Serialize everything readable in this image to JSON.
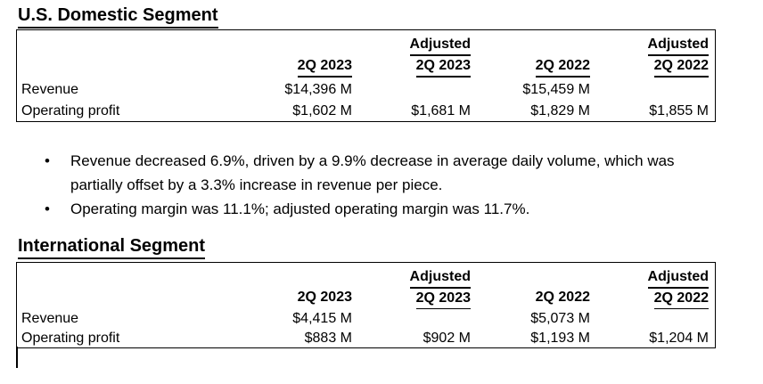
{
  "colors": {
    "background": "#ffffff",
    "text": "#000000",
    "table_border": "#000000"
  },
  "domestic": {
    "title": "U.S. Domestic Segment",
    "table": {
      "col_headers": {
        "adjusted_label": "Adjusted",
        "q2_2023": "2Q 2023",
        "adj_2023": "2Q 2023",
        "q2_2022": "2Q 2022",
        "adj_2022": "2Q 2022"
      },
      "rows": [
        {
          "label": "Revenue",
          "q2_2023": "$14,396 M",
          "adj_2023": "",
          "q2_2022": "$15,459 M",
          "adj_2022": ""
        },
        {
          "label": "Operating profit",
          "q2_2023": "$1,602 M",
          "adj_2023": "$1,681 M",
          "q2_2022": "$1,829 M",
          "adj_2022": "$1,855 M"
        }
      ]
    }
  },
  "highlights": {
    "bullet_char": "•",
    "items": [
      "Revenue decreased 6.9%, driven by a 9.9% decrease in average daily volume, which was partially offset by a 3.3% increase in revenue per piece.",
      "Operating margin was 11.1%; adjusted operating margin was 11.7%."
    ]
  },
  "international": {
    "title": "International Segment",
    "table": {
      "col_headers": {
        "adjusted_label": "Adjusted",
        "q2_2023": "2Q 2023",
        "adj_2023": "2Q 2023",
        "q2_2022": "2Q 2022",
        "adj_2022": "2Q 2022"
      },
      "rows": [
        {
          "label": "Revenue",
          "q2_2023": "$4,415 M",
          "adj_2023": "",
          "q2_2022": "$5,073 M",
          "adj_2022": ""
        },
        {
          "label": "Operating profit",
          "q2_2023": "$883 M",
          "adj_2023": "$902 M",
          "q2_2022": "$1,193 M",
          "adj_2022": "$1,204 M"
        }
      ]
    }
  }
}
